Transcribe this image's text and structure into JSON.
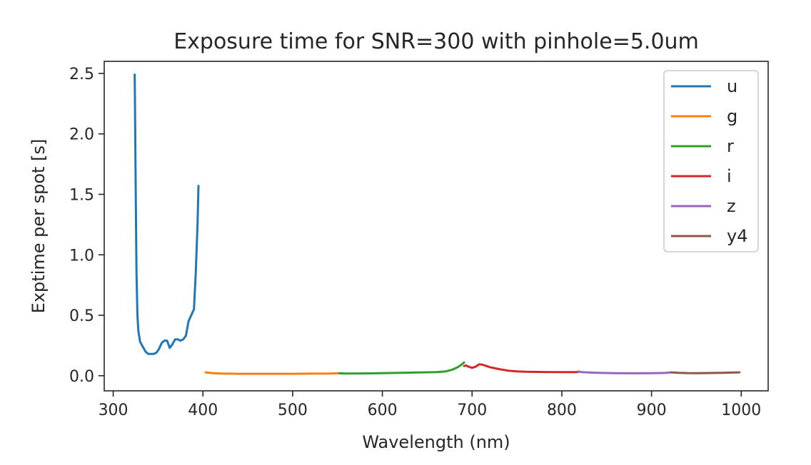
{
  "chart_data": {
    "type": "line",
    "title": "Exposure time for SNR=300 with pinhole=5.0um",
    "xlabel": "Wavelength (nm)",
    "ylabel": "Exptime per spot [s]",
    "xlim": [
      290,
      1030
    ],
    "ylim": [
      -0.125,
      2.6
    ],
    "xticks": [
      300,
      400,
      500,
      600,
      700,
      800,
      900,
      1000
    ],
    "xtick_labels": [
      "300",
      "400",
      "500",
      "600",
      "700",
      "800",
      "900",
      "1000"
    ],
    "yticks": [
      0.0,
      0.5,
      1.0,
      1.5,
      2.0,
      2.5
    ],
    "ytick_labels": [
      "0.0",
      "0.5",
      "1.0",
      "1.5",
      "2.0",
      "2.5"
    ],
    "grid": false,
    "legend_position": "top-right",
    "series": [
      {
        "name": "u",
        "color": "#1f77b4",
        "x": [
          324,
          325,
          326,
          327,
          328,
          330,
          333,
          336,
          339,
          342,
          345,
          348,
          351,
          354,
          357,
          360,
          363,
          366,
          369,
          372,
          375,
          378,
          381,
          384,
          387,
          390,
          392,
          394,
          395
        ],
        "y": [
          2.49,
          1.6,
          0.85,
          0.5,
          0.37,
          0.28,
          0.24,
          0.2,
          0.18,
          0.18,
          0.18,
          0.19,
          0.22,
          0.27,
          0.29,
          0.29,
          0.23,
          0.26,
          0.3,
          0.3,
          0.29,
          0.3,
          0.33,
          0.45,
          0.5,
          0.55,
          0.85,
          1.25,
          1.57
        ]
      },
      {
        "name": "g",
        "color": "#ff7f0e",
        "x": [
          403,
          410,
          420,
          440,
          460,
          480,
          500,
          520,
          540,
          552
        ],
        "y": [
          0.028,
          0.022,
          0.018,
          0.016,
          0.016,
          0.016,
          0.016,
          0.017,
          0.018,
          0.02
        ]
      },
      {
        "name": "r",
        "color": "#2ca02c",
        "x": [
          552,
          560,
          580,
          600,
          620,
          640,
          660,
          670,
          678,
          684,
          688,
          691
        ],
        "y": [
          0.02,
          0.018,
          0.019,
          0.021,
          0.024,
          0.027,
          0.03,
          0.035,
          0.05,
          0.07,
          0.09,
          0.11
        ]
      },
      {
        "name": "i",
        "color": "#d62728",
        "x": [
          691,
          693,
          696,
          700,
          704,
          708,
          712,
          716,
          720,
          730,
          740,
          750,
          760,
          780,
          800,
          818
        ],
        "y": [
          0.08,
          0.085,
          0.075,
          0.065,
          0.075,
          0.095,
          0.09,
          0.08,
          0.07,
          0.055,
          0.042,
          0.036,
          0.033,
          0.031,
          0.03,
          0.03
        ]
      },
      {
        "name": "z",
        "color": "#9467bd",
        "x": [
          818,
          822,
          830,
          840,
          860,
          880,
          900,
          915,
          922
        ],
        "y": [
          0.035,
          0.03,
          0.027,
          0.024,
          0.021,
          0.02,
          0.021,
          0.023,
          0.028
        ]
      },
      {
        "name": "y4",
        "color": "#8c564b",
        "x": [
          922,
          930,
          940,
          950,
          960,
          970,
          980,
          990,
          998
        ],
        "y": [
          0.028,
          0.024,
          0.022,
          0.021,
          0.022,
          0.023,
          0.024,
          0.026,
          0.028
        ]
      }
    ]
  }
}
